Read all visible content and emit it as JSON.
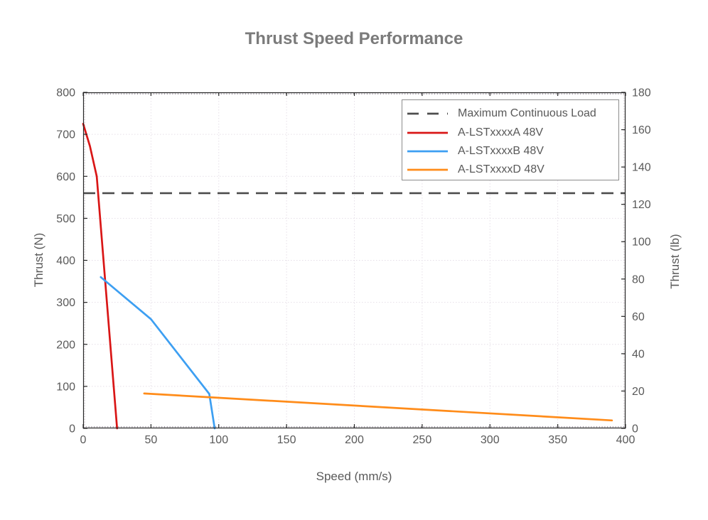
{
  "figure": {
    "background": "#ffffff"
  },
  "chart_data": {
    "type": "line",
    "title": "Thrust Speed Performance",
    "xlabel": "Speed (mm/s)",
    "ylabel_left": "Thrust (N)",
    "ylabel_right": "Thrust (lb)",
    "x_axis": {
      "min": 0,
      "max": 400,
      "tick_step": 50
    },
    "y_axis_left": {
      "min": 0,
      "max": 800,
      "tick_step": 100
    },
    "y_axis_right": {
      "min": 0,
      "max": 180,
      "tick_step": 20
    },
    "grid": true,
    "legend_position": "top-right",
    "max_continuous_load": {
      "label": "Maximum Continuous Load",
      "value_N": 560,
      "color": "#4d4d4d",
      "style": "dashed"
    },
    "series": [
      {
        "name": "A-LSTxxxxA 48V",
        "color": "#d91616",
        "points_speed_thrustN": [
          [
            0,
            725
          ],
          [
            5,
            672
          ],
          [
            10,
            600
          ],
          [
            25,
            0
          ]
        ]
      },
      {
        "name": "A-LSTxxxxB 48V",
        "color": "#3d9ff2",
        "points_speed_thrustN": [
          [
            13,
            360
          ],
          [
            50,
            260
          ],
          [
            93,
            82
          ],
          [
            97,
            0
          ]
        ]
      },
      {
        "name": "A-LSTxxxxD 48V",
        "color": "#ff8c1a",
        "points_speed_thrustN": [
          [
            45,
            83
          ],
          [
            390,
            19
          ]
        ]
      }
    ],
    "colors": {
      "text": "#595959",
      "title": "#7b7b7b",
      "axis": "#262626",
      "grid": "#e6dfe8"
    }
  }
}
